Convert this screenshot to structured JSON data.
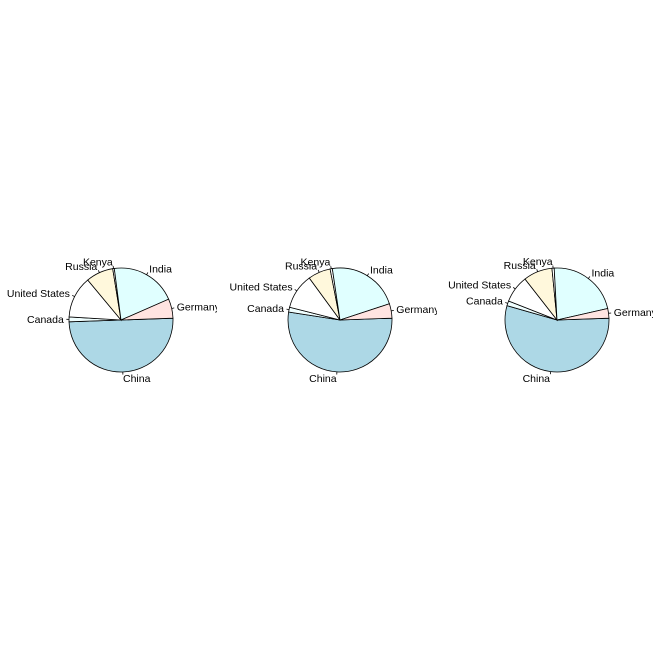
{
  "chart_data": [
    {
      "type": "pie",
      "labels": [
        "China",
        "Canada",
        "United States",
        "Russia",
        "Kenya",
        "India",
        "Germany"
      ],
      "values": [
        50.0,
        1.5,
        13.0,
        8.5,
        0.5,
        20.5,
        6.0
      ],
      "colors": [
        "#add8e6",
        "#f0ffff",
        "#ffffff",
        "#fff8dc",
        "#ffffff",
        "#e0ffff",
        "#ffe4e1"
      ]
    },
    {
      "type": "pie",
      "labels": [
        "China",
        "Canada",
        "United States",
        "Russia",
        "Kenya",
        "India",
        "Germany"
      ],
      "values": [
        53.0,
        1.5,
        11.0,
        7.0,
        0.7,
        22.3,
        4.5
      ],
      "colors": [
        "#add8e6",
        "#f0ffff",
        "#ffffff",
        "#fff8dc",
        "#ffffff",
        "#e0ffff",
        "#ffe4e1"
      ]
    },
    {
      "type": "pie",
      "labels": [
        "China",
        "Canada",
        "United States",
        "Russia",
        "Kenya",
        "India",
        "Germany"
      ],
      "values": [
        55.0,
        1.5,
        8.5,
        9.0,
        0.7,
        22.3,
        3.0
      ],
      "colors": [
        "#add8e6",
        "#f0ffff",
        "#ffffff",
        "#fff8dc",
        "#ffffff",
        "#e0ffff",
        "#ffe4e1"
      ]
    }
  ]
}
